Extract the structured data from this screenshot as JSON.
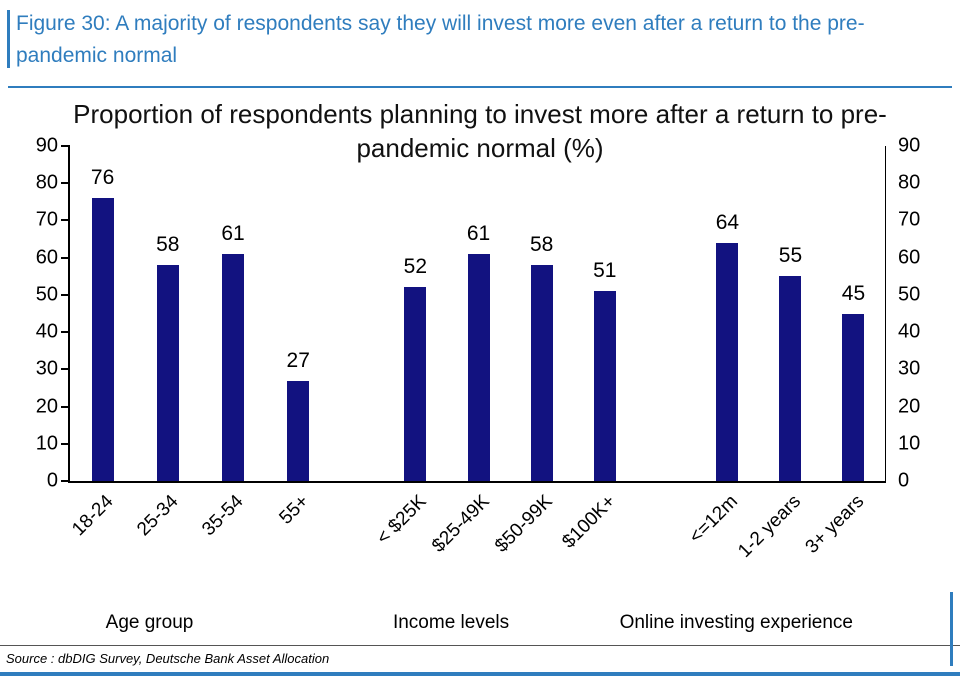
{
  "figure": {
    "title": "Figure 30: A majority of respondents say they will invest more even after a return to the pre-pandemic normal",
    "accent_color": "#2f7dbe"
  },
  "chart_data": {
    "type": "bar",
    "title": "Proportion of respondents planning to invest more after a return to pre-pandemic normal (%)",
    "ylim": [
      0,
      90
    ],
    "yticks": [
      0,
      10,
      20,
      30,
      40,
      50,
      60,
      70,
      80,
      90
    ],
    "grid": false,
    "legend": "none",
    "bar_color": "#121280",
    "groups": [
      {
        "label": "Age group",
        "categories": [
          "18-24",
          "25-34",
          "35-54",
          "55+"
        ],
        "values": [
          76,
          58,
          61,
          27
        ]
      },
      {
        "label": "Income levels",
        "categories": [
          "< $25K",
          "$25-49K",
          "$50-99K",
          "$100K+"
        ],
        "values": [
          52,
          61,
          58,
          51
        ]
      },
      {
        "label": "Online investing experience",
        "categories": [
          "<=12m",
          "1-2 years",
          "3+ years"
        ],
        "values": [
          64,
          55,
          45
        ]
      }
    ]
  },
  "source": "Source : dbDIG Survey, Deutsche Bank Asset Allocation"
}
